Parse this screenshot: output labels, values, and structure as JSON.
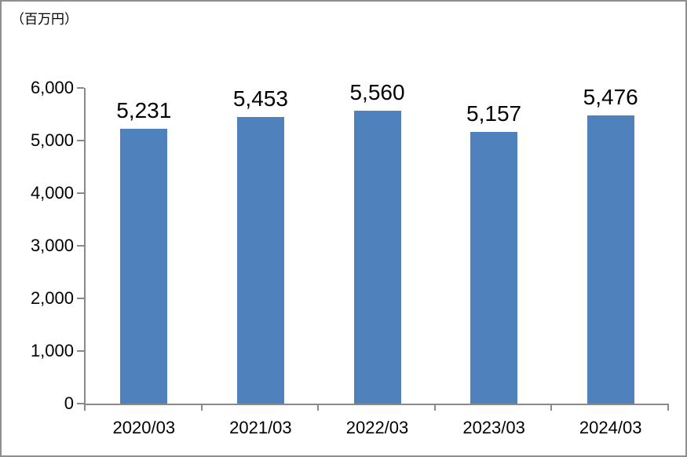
{
  "unit_label": "（百万円）",
  "colors": {
    "bar": "#4F81BD",
    "axis": "#898989",
    "frame_border": "#8f8f8f",
    "text": "#000000",
    "background": "#FFFFFF"
  },
  "chart_data": {
    "type": "bar",
    "title": "",
    "unit_label": "（百万円）",
    "categories": [
      "2020/03",
      "2021/03",
      "2022/03",
      "2023/03",
      "2024/03"
    ],
    "values": [
      5231,
      5453,
      5560,
      5157,
      5476
    ],
    "value_labels": [
      "5,231",
      "5,453",
      "5,560",
      "5,157",
      "5,476"
    ],
    "xlabel": "",
    "ylabel": "",
    "ylim": [
      0,
      6000
    ],
    "ytick_step": 1000,
    "ytick_labels": [
      "6,000",
      "5,000",
      "4,000",
      "3,000",
      "2,000",
      "1,000",
      "0"
    ],
    "grid": false,
    "legend": "none"
  }
}
